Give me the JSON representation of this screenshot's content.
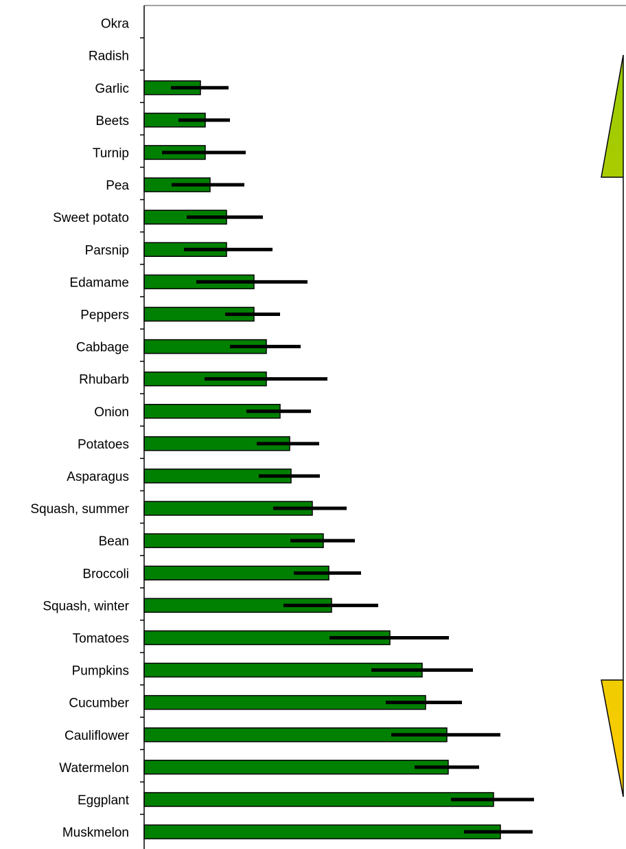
{
  "chart_data": {
    "type": "bar",
    "orientation": "horizontal",
    "categories": [
      "Okra",
      "Radish",
      "Garlic",
      "Beets",
      "Turnip",
      "Pea",
      "Sweet potato",
      "Parsnip",
      "Edamame",
      "Peppers",
      "Cabbage",
      "Rhubarb",
      "Onion",
      "Potatoes",
      "Asparagus",
      "Squash, summer",
      "Bean",
      "Broccoli",
      "Squash, winter",
      "Tomatoes",
      "Pumpkins",
      "Cucumber",
      "Cauliflower",
      "Watermelon",
      "Eggplant",
      "Muskmelon"
    ],
    "values": [
      0,
      0,
      82,
      89,
      89,
      96,
      120,
      120,
      160,
      160,
      178,
      178,
      198,
      212,
      214,
      245,
      261,
      269,
      273,
      358,
      405,
      410,
      441,
      443,
      509,
      519
    ],
    "error_low": [
      0,
      0,
      43,
      39,
      63,
      56,
      58,
      62,
      84,
      42,
      53,
      90,
      49,
      48,
      47,
      57,
      48,
      51,
      70,
      88,
      74,
      58,
      81,
      49,
      62,
      53
    ],
    "error_high": [
      0,
      0,
      41,
      36,
      59,
      50,
      53,
      67,
      78,
      38,
      50,
      89,
      45,
      43,
      42,
      50,
      46,
      47,
      68,
      86,
      74,
      53,
      78,
      45,
      59,
      47
    ],
    "xlim": [
      0,
      700
    ],
    "bar_color": "#008000",
    "bar_edge_color": "#000000",
    "error_color": "#000000",
    "grid": false,
    "legend": "none",
    "arrow": {
      "colors": [
        "#99cc00",
        "#ffcc00"
      ],
      "direction": "vertical-double"
    }
  }
}
